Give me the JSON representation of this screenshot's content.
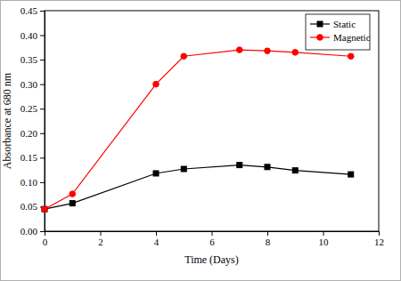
{
  "chart_data": {
    "type": "line",
    "x_label": "Time (Days)",
    "y_label": "Absorbance at 680 nm",
    "x": [
      0,
      1,
      4,
      5,
      7,
      8,
      9,
      11
    ],
    "series": [
      {
        "name": "Static",
        "color": "#000000",
        "marker": "square",
        "line_style": "solid",
        "values": [
          0.045,
          0.057,
          0.118,
          0.127,
          0.135,
          0.131,
          0.124,
          0.116
        ]
      },
      {
        "name": "Magnetic",
        "color": "#ff0000",
        "marker": "circle",
        "line_style": "solid",
        "values": [
          0.045,
          0.076,
          0.3,
          0.357,
          0.37,
          0.368,
          0.365,
          0.357
        ]
      }
    ],
    "xlim": [
      0,
      12
    ],
    "xticks": [
      0,
      2,
      4,
      6,
      8,
      10,
      12
    ],
    "ylim": [
      0,
      0.45
    ],
    "yticks": [
      {
        "value": 0,
        "label": "0.00"
      },
      {
        "value": 0.05,
        "label": "0.05"
      },
      {
        "value": 0.1,
        "label": "0.10"
      },
      {
        "value": 0.15,
        "label": "0.15"
      },
      {
        "value": 0.2,
        "label": "0.20"
      },
      {
        "value": 0.25,
        "label": "0.25"
      },
      {
        "value": 0.3,
        "label": "0.30"
      },
      {
        "value": 0.35,
        "label": "0.35"
      },
      {
        "value": 0.4,
        "label": "0.40"
      },
      {
        "value": 0.45,
        "label": "0.45"
      }
    ],
    "grid": false,
    "legend": "upper right"
  }
}
